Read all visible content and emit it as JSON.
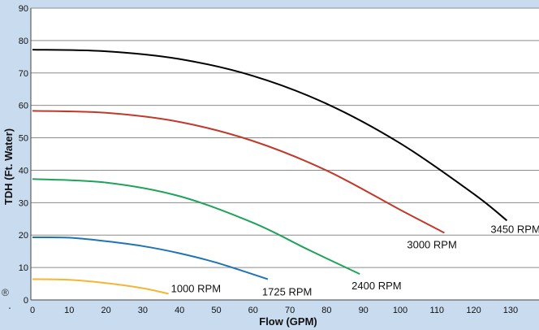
{
  "chart_data": {
    "type": "line",
    "title": "",
    "xlabel": "Flow (GPM)",
    "ylabel": "TDH (Ft. Water)",
    "xlim": [
      0,
      140
    ],
    "ylim": [
      0,
      90
    ],
    "x_ticks": [
      0,
      10,
      20,
      30,
      40,
      50,
      60,
      70,
      80,
      90,
      100,
      110,
      120,
      130
    ],
    "y_ticks": [
      0,
      10,
      20,
      30,
      40,
      50,
      60,
      70,
      80,
      90
    ],
    "grid": "horizontal",
    "legend": "none",
    "series": [
      {
        "name": "3450 RPM",
        "color": "#000000",
        "x": [
          0,
          20,
          40,
          60,
          80,
          100,
          120,
          129
        ],
        "y": [
          77.2,
          76.7,
          74.3,
          69.1,
          60.5,
          48.3,
          32.7,
          24.5
        ]
      },
      {
        "name": "3000 RPM",
        "color": "#c0392b",
        "x": [
          0,
          20,
          40,
          60,
          80,
          100,
          112
        ],
        "y": [
          58.3,
          57.7,
          54.9,
          49.0,
          39.9,
          27.8,
          20.7
        ]
      },
      {
        "name": "2400 RPM",
        "color": "#1fa35a",
        "x": [
          0,
          20,
          40,
          60,
          75,
          89
        ],
        "y": [
          37.3,
          36.2,
          32.0,
          23.8,
          15.5,
          8.0
        ]
      },
      {
        "name": "1725 RPM",
        "color": "#1f74b4",
        "x": [
          0,
          10,
          20,
          30,
          40,
          50,
          64
        ],
        "y": [
          19.3,
          19.2,
          18.1,
          16.6,
          14.4,
          11.5,
          6.4
        ]
      },
      {
        "name": "1000 RPM",
        "color": "#f5b535",
        "x": [
          0,
          10,
          20,
          30,
          37
        ],
        "y": [
          6.4,
          6.2,
          5.2,
          3.6,
          1.9
        ]
      }
    ],
    "edge_mark": "®"
  }
}
